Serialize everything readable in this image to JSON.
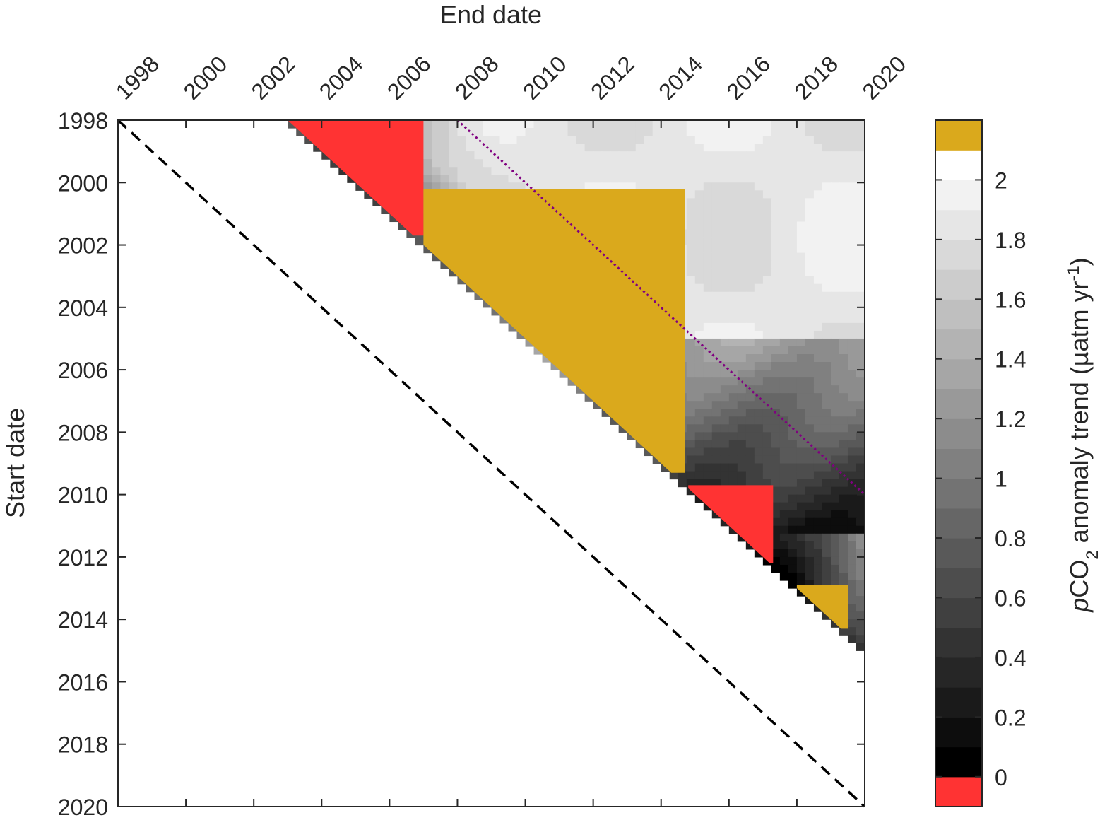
{
  "chart_data": {
    "type": "heatmap",
    "xlabel": "End date",
    "ylabel": "Start date",
    "x_ticks": [
      "1998",
      "2000",
      "2002",
      "2004",
      "2006",
      "2008",
      "2010",
      "2012",
      "2014",
      "2016",
      "2018",
      "2020"
    ],
    "y_ticks": [
      "1998",
      "2000",
      "2002",
      "2004",
      "2006",
      "2008",
      "2010",
      "2012",
      "2014",
      "2016",
      "2018",
      "2020"
    ],
    "xlim": [
      1998,
      2020
    ],
    "ylim": [
      1998,
      2020
    ],
    "y_reversed": true,
    "x_axis_position": "top",
    "minimum_window_years": 5,
    "colorbar": {
      "label_parts": [
        "p",
        "CO",
        "2",
        " anomaly trend (µatm yr",
        "-1",
        ")"
      ],
      "ticks": [
        "0",
        "0.2",
        "0.4",
        "0.6",
        "0.8",
        "1",
        "1.2",
        "1.4",
        "1.6",
        "1.8",
        "2"
      ],
      "range": [
        -0.1,
        2.2
      ],
      "below_range_color": "#ff3333",
      "above_range_color": "#daa91c",
      "colormap": "gray"
    },
    "regions": [
      {
        "name": "negative trend (below 0)",
        "color": "#ff3333",
        "start_range": [
          1998,
          2001.7
        ],
        "end_range": [
          2003,
          2007
        ]
      },
      {
        "name": "negative trend (below 0)",
        "color": "#ff3333",
        "start_range": [
          2009.7,
          2012.2
        ],
        "end_range": [
          2014.8,
          2017.3
        ]
      },
      {
        "name": "trend above 2.1",
        "color": "#daa91c",
        "start_range": [
          2000.2,
          2009.3
        ],
        "end_range": [
          2007,
          2014.7
        ]
      },
      {
        "name": "trend above 2.1",
        "color": "#daa91c",
        "start_range": [
          2012.9,
          2014.3
        ],
        "end_range": [
          2018,
          2019.5
        ]
      }
    ],
    "reference_lines": [
      {
        "name": "start equals end",
        "style": "dashed",
        "color": "#000000",
        "from": {
          "start": 1998,
          "end": 1998
        },
        "to": {
          "start": 2020,
          "end": 2020
        }
      },
      {
        "name": "10-year window",
        "style": "dotted",
        "color": "#800080",
        "from": {
          "start": 1998,
          "end": 2008
        },
        "to": {
          "start": 2010,
          "end": 2020
        }
      }
    ]
  }
}
